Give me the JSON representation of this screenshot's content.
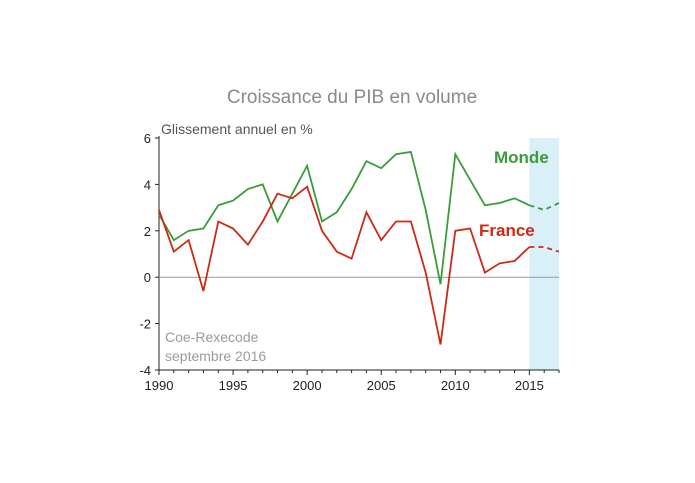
{
  "chart_data": {
    "type": "line",
    "title": "Croissance du PIB en volume",
    "ylabel": "Glissement annuel en %",
    "xlabel": "",
    "xlim": [
      1990,
      2017
    ],
    "ylim": [
      -4,
      6
    ],
    "yticks": [
      -4,
      -2,
      0,
      2,
      4,
      6
    ],
    "xticks": [
      1990,
      1995,
      2000,
      2005,
      2010,
      2015
    ],
    "forecast_start": 2015,
    "forecast_shade_color": "#d9f0f8",
    "grid": false,
    "source": [
      "Coe-Rexecode",
      "septembre 2016"
    ],
    "series": [
      {
        "name": "Monde",
        "color": "#3a9c3a",
        "x": [
          1990,
          1991,
          1992,
          1993,
          1994,
          1995,
          1996,
          1997,
          1998,
          1999,
          2000,
          2001,
          2002,
          2003,
          2004,
          2005,
          2006,
          2007,
          2008,
          2009,
          2010,
          2011,
          2012,
          2013,
          2014,
          2015,
          2016,
          2017
        ],
        "values": [
          2.7,
          1.6,
          2.0,
          2.1,
          3.1,
          3.3,
          3.8,
          4.0,
          2.4,
          3.6,
          4.8,
          2.4,
          2.8,
          3.8,
          5.0,
          4.7,
          5.3,
          5.4,
          2.9,
          -0.3,
          5.3,
          4.2,
          3.1,
          3.2,
          3.4,
          3.1,
          2.9,
          3.2
        ]
      },
      {
        "name": "France",
        "color": "#cc2a14",
        "x": [
          1990,
          1991,
          1992,
          1993,
          1994,
          1995,
          1996,
          1997,
          1998,
          1999,
          2000,
          2001,
          2002,
          2003,
          2004,
          2005,
          2006,
          2007,
          2008,
          2009,
          2010,
          2011,
          2012,
          2013,
          2014,
          2015,
          2016,
          2017
        ],
        "values": [
          2.9,
          1.1,
          1.6,
          -0.6,
          2.4,
          2.1,
          1.4,
          2.4,
          3.6,
          3.4,
          3.9,
          2.0,
          1.1,
          0.8,
          2.8,
          1.6,
          2.4,
          2.4,
          0.2,
          -2.9,
          2.0,
          2.1,
          0.2,
          0.6,
          0.7,
          1.3,
          1.3,
          1.1
        ]
      }
    ]
  }
}
